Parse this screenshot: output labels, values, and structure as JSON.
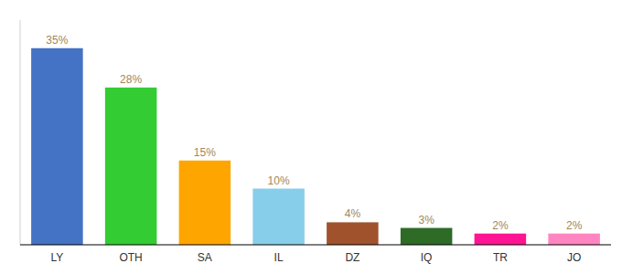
{
  "chart_data": {
    "type": "bar",
    "categories": [
      "LY",
      "OTH",
      "SA",
      "IL",
      "DZ",
      "IQ",
      "TR",
      "JO"
    ],
    "values": [
      35,
      28,
      15,
      10,
      4,
      3,
      2,
      2
    ],
    "value_labels": [
      "35%",
      "28%",
      "15%",
      "10%",
      "4%",
      "3%",
      "2%",
      "2%"
    ],
    "colors": [
      "#4472C4",
      "#33CC33",
      "#FFA500",
      "#87CEEB",
      "#A0522D",
      "#2D6B27",
      "#FF1493",
      "#FF85C0"
    ],
    "ylim": [
      0,
      40
    ],
    "data_labels": true,
    "tick_labels": "x",
    "grid": false
  }
}
